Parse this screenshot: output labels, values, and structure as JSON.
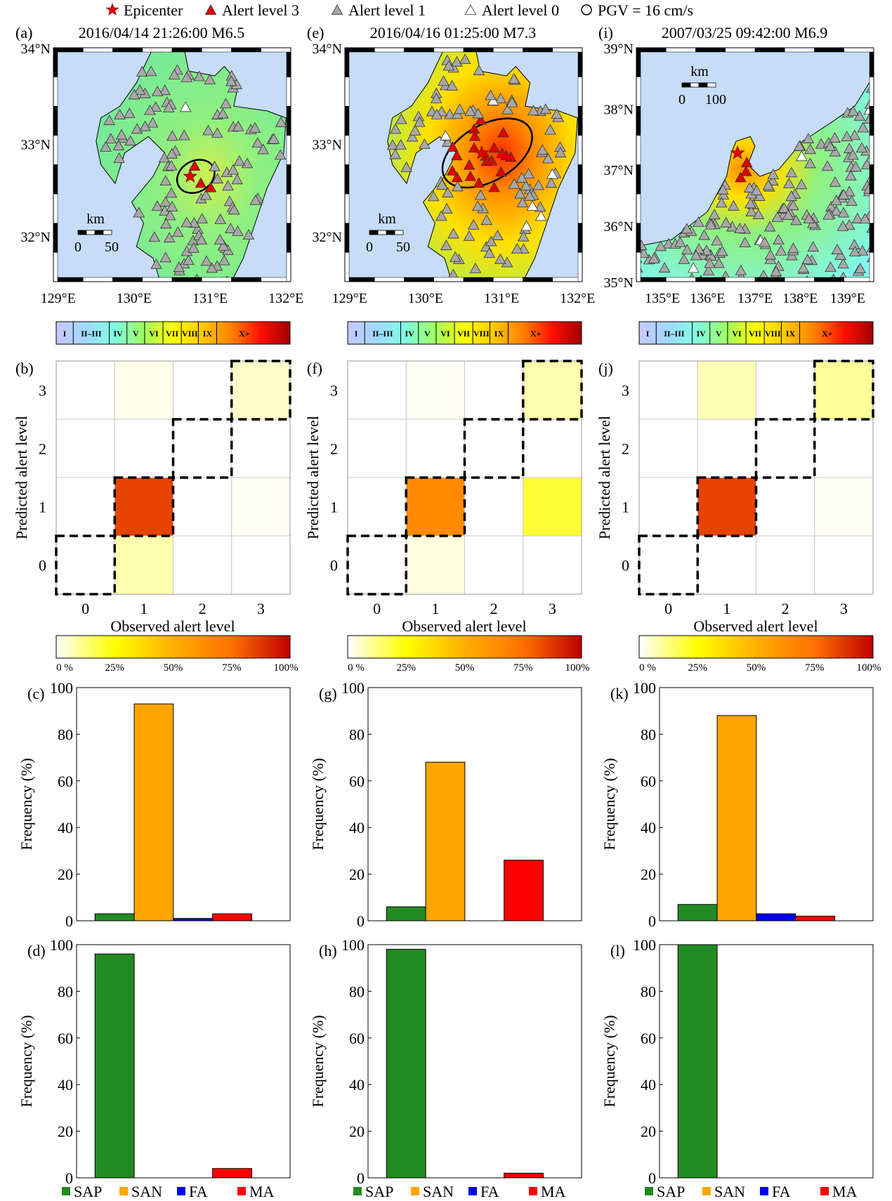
{
  "legend_top": [
    {
      "symbol": "star",
      "color": "#e00000",
      "label": "Epicenter"
    },
    {
      "symbol": "triangle",
      "color": "#e00000",
      "label": "Alert level 3"
    },
    {
      "symbol": "triangle",
      "color": "#a8a8a8",
      "label": "Alert level 1"
    },
    {
      "symbol": "triangle",
      "color": "#ffffff",
      "label": "Alert level 0"
    },
    {
      "symbol": "circle",
      "color": "#ffffff",
      "label": "PGV = 16 cm/s"
    }
  ],
  "maps": [
    {
      "label": "(a)",
      "title": "2016/04/14   21:26:00   M6.5",
      "lat_ticks": [
        "34°N",
        "33°N",
        "32°N"
      ],
      "lon_ticks": [
        "129°E",
        "130°E",
        "131°E",
        "132°E"
      ],
      "scale": {
        "unit": "km",
        "labels": [
          "0",
          "50"
        ]
      },
      "region": "Kyushu",
      "shaking": "moderate"
    },
    {
      "label": "(e)",
      "title": "2016/04/16   01:25:00   M7.3",
      "lat_ticks": [
        "34°N",
        "33°N",
        "32°N"
      ],
      "lon_ticks": [
        "129°E",
        "130°E",
        "131°E",
        "132°E"
      ],
      "scale": {
        "unit": "km",
        "labels": [
          "0",
          "50"
        ]
      },
      "region": "Kyushu",
      "shaking": "strong"
    },
    {
      "label": "(i)",
      "title": "2007/03/25   09:42:00   M6.9",
      "lat_ticks": [
        "39°N",
        "38°N",
        "37°N",
        "36°N",
        "35°N"
      ],
      "lon_ticks": [
        "135°E",
        "136°E",
        "137°E",
        "138°E",
        "139°E"
      ],
      "scale": {
        "unit": "km",
        "labels": [
          "0",
          "100"
        ]
      },
      "region": "Noto",
      "shaking": "weak"
    }
  ],
  "mmi_colorbar": {
    "labels": [
      "I",
      "II–III",
      "IV",
      "V",
      "VI",
      "VII",
      "VIII",
      "IX",
      "X+"
    ],
    "colors": [
      "#c8c8ff",
      "#a0d8ff",
      "#80ffe0",
      "#a0ff60",
      "#ffff00",
      "#ffc800",
      "#ff8000",
      "#ff1000",
      "#a00000"
    ]
  },
  "percent_colorbar": {
    "ticks": [
      "0 %",
      "25%",
      "50%",
      "75%",
      "100%"
    ],
    "colors": [
      "#ffffff",
      "#ffff00",
      "#ffb000",
      "#ff7000",
      "#c00000"
    ]
  },
  "chart_data": [
    {
      "type": "heatmap",
      "label": "(b)",
      "xlabel": "Observed alert level",
      "ylabel": "Predicted alert level",
      "x_ticks": [
        "0",
        "1",
        "2",
        "3"
      ],
      "y_ticks": [
        "0",
        "1",
        "2",
        "3"
      ],
      "values_by_predicted": [
        [
          0,
          8,
          0,
          0
        ],
        [
          0,
          85,
          0,
          1
        ],
        [
          0,
          0,
          0,
          0
        ],
        [
          0,
          2,
          0,
          5
        ]
      ],
      "unit": "%"
    },
    {
      "type": "heatmap",
      "label": "(f)",
      "xlabel": "Observed alert level",
      "ylabel": "Predicted alert level",
      "x_ticks": [
        "0",
        "1",
        "2",
        "3"
      ],
      "y_ticks": [
        "0",
        "1",
        "2",
        "3"
      ],
      "values_by_predicted": [
        [
          0,
          3,
          0,
          0
        ],
        [
          0,
          65,
          0,
          20
        ],
        [
          0,
          0,
          0,
          0
        ],
        [
          0,
          1,
          0,
          8
        ]
      ],
      "unit": "%"
    },
    {
      "type": "heatmap",
      "label": "(j)",
      "xlabel": "Observed alert level",
      "ylabel": "Predicted alert level",
      "x_ticks": [
        "0",
        "1",
        "2",
        "3"
      ],
      "y_ticks": [
        "0",
        "1",
        "2",
        "3"
      ],
      "values_by_predicted": [
        [
          0,
          0,
          0,
          0
        ],
        [
          0,
          85,
          0,
          1
        ],
        [
          0,
          0,
          0,
          0
        ],
        [
          0,
          7,
          0,
          10
        ]
      ],
      "unit": "%"
    },
    {
      "type": "bar",
      "label": "(c)",
      "ylabel": "Frequency (%)",
      "categories": [
        "SAP",
        "SAN",
        "FA",
        "MA"
      ],
      "values": [
        3,
        93,
        1,
        3
      ],
      "ylim": [
        0,
        100
      ],
      "y_ticks": [
        "0",
        "20",
        "40",
        "60",
        "80",
        "100"
      ]
    },
    {
      "type": "bar",
      "label": "(g)",
      "ylabel": "Frequency (%)",
      "categories": [
        "SAP",
        "SAN",
        "FA",
        "MA"
      ],
      "values": [
        6,
        68,
        0,
        26
      ],
      "ylim": [
        0,
        100
      ],
      "y_ticks": [
        "0",
        "20",
        "40",
        "60",
        "80",
        "100"
      ]
    },
    {
      "type": "bar",
      "label": "(k)",
      "ylabel": "Frequency (%)",
      "categories": [
        "SAP",
        "SAN",
        "FA",
        "MA"
      ],
      "values": [
        7,
        88,
        3,
        2
      ],
      "ylim": [
        0,
        100
      ],
      "y_ticks": [
        "0",
        "20",
        "40",
        "60",
        "80",
        "100"
      ]
    },
    {
      "type": "bar",
      "label": "(d)",
      "ylabel": "Frequency (%)",
      "categories": [
        "SAP",
        "SAN",
        "FA",
        "MA"
      ],
      "values": [
        96,
        0,
        0,
        4
      ],
      "ylim": [
        0,
        100
      ],
      "y_ticks": [
        "0",
        "20",
        "40",
        "60",
        "80",
        "100"
      ]
    },
    {
      "type": "bar",
      "label": "(h)",
      "ylabel": "Frequency (%)",
      "categories": [
        "SAP",
        "SAN",
        "FA",
        "MA"
      ],
      "values": [
        98,
        0,
        0,
        2
      ],
      "ylim": [
        0,
        100
      ],
      "y_ticks": [
        "0",
        "20",
        "40",
        "60",
        "80",
        "100"
      ]
    },
    {
      "type": "bar",
      "label": "(l)",
      "ylabel": "Frequency (%)",
      "categories": [
        "SAP",
        "SAN",
        "FA",
        "MA"
      ],
      "values": [
        100,
        0,
        0,
        0
      ],
      "ylim": [
        0,
        100
      ],
      "y_ticks": [
        "0",
        "20",
        "40",
        "60",
        "80",
        "100"
      ]
    }
  ],
  "bar_colors": {
    "SAP": "#228b22",
    "SAN": "#ffa500",
    "FA": "#0000ee",
    "MA": "#ff0000"
  },
  "bar_legend": [
    "SAP",
    "SAN",
    "FA",
    "MA"
  ]
}
